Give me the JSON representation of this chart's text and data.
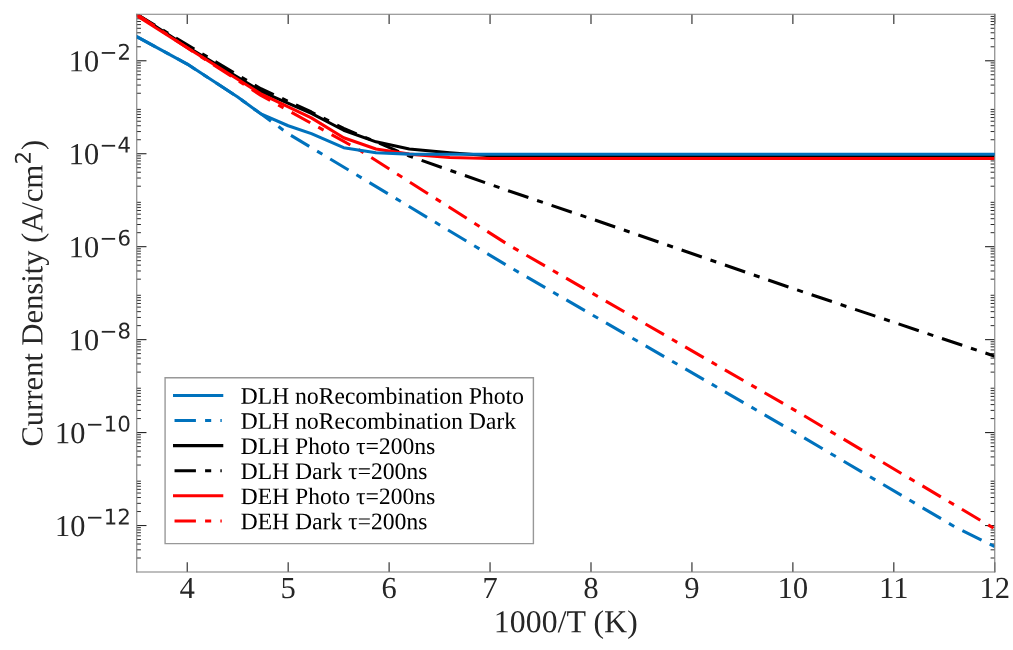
{
  "chart_data": {
    "type": "line",
    "xlabel": "1000/T (K)",
    "ylabel": "Current Density (A/cm$^{2}$)",
    "log": "y",
    "xlim": [
      3.5,
      12
    ],
    "ylim": [
      1e-13,
      0.1
    ],
    "xticks": [
      4,
      5,
      6,
      7,
      8,
      9,
      10,
      11,
      12
    ],
    "yticks": [
      {
        "value": 1e-12,
        "label": "10$^{−12}$"
      },
      {
        "value": 1e-10,
        "label": "10$^{−10}$"
      },
      {
        "value": 1e-08,
        "label": "10$^{−8}$"
      },
      {
        "value": 1e-06,
        "label": "10$^{−6}$"
      },
      {
        "value": 0.0001,
        "label": "10$^{−4}$"
      },
      {
        "value": 0.01,
        "label": "10$^{−2}$"
      }
    ],
    "grid": false,
    "legend": "bottom left",
    "series": [
      {
        "name": "DLH noRecombination Photo",
        "color": "#0072bd",
        "line_style": "solid",
        "x": [
          3.5,
          4,
          4.5,
          4.73,
          5,
          5.23,
          5.55,
          5.87,
          6.2,
          7,
          8,
          9,
          10,
          11,
          12
        ],
        "values": [
          0.033,
          0.0085,
          0.00166,
          0.00072,
          0.0004,
          0.00027,
          0.000135,
          0.000105,
          9.8e-05,
          9.7e-05,
          9.7e-05,
          9.7e-05,
          9.7e-05,
          9.7e-05,
          9.7e-05
        ]
      },
      {
        "name": "DLH noRecombination Dark",
        "color": "#0072bd",
        "line_style": "dashed",
        "x": [
          3.5,
          4,
          4.5,
          4.73,
          5,
          7.18,
          10,
          11.6,
          12
        ],
        "values": [
          0.033,
          0.0085,
          0.00166,
          0.00072,
          0.00027,
          3.8e-07,
          1.07e-10,
          9.5e-13,
          3.5e-13
        ]
      },
      {
        "name": "DLH Photo τ=200ns",
        "color": "#000000",
        "line_style": "solid",
        "x": [
          3.5,
          4,
          4.73,
          5.23,
          5.55,
          5.87,
          6.2,
          6.6,
          7,
          8,
          12
        ],
        "values": [
          0.1,
          0.02,
          0.0022,
          0.00074,
          0.00032,
          0.00018,
          0.000126,
          0.000105,
          9e-05,
          9e-05,
          9e-05
        ]
      },
      {
        "name": "DLH Dark τ=200ns",
        "color": "#000000",
        "line_style": "dashed",
        "x": [
          3.5,
          4,
          4.73,
          5.23,
          5.55,
          5.87,
          6.2,
          7.18,
          8,
          10,
          12
        ],
        "values": [
          0.1,
          0.022,
          0.0025,
          0.00079,
          0.00035,
          0.00018,
          8.9e-05,
          1.6e-05,
          4e-06,
          1.26e-07,
          4.4e-09
        ]
      },
      {
        "name": "DEH Photo τ=200ns",
        "color": "#ff0000",
        "line_style": "solid",
        "x": [
          3.5,
          4,
          4.73,
          5.23,
          5.55,
          5.87,
          6.2,
          6.6,
          7,
          12
        ],
        "values": [
          0.093,
          0.019,
          0.00195,
          0.00059,
          0.00022,
          0.000126,
          9.8e-05,
          8.3e-05,
          7.9e-05,
          7.9e-05
        ]
      },
      {
        "name": "DEH Dark τ=200ns",
        "color": "#ff0000",
        "line_style": "dashed",
        "x": [
          3.5,
          4,
          4.73,
          5.23,
          5.72,
          7.18,
          10,
          12
        ],
        "values": [
          0.1,
          0.019,
          0.0018,
          0.00045,
          0.000115,
          1.1e-06,
          3.2e-10,
          8.5e-13
        ]
      }
    ]
  }
}
